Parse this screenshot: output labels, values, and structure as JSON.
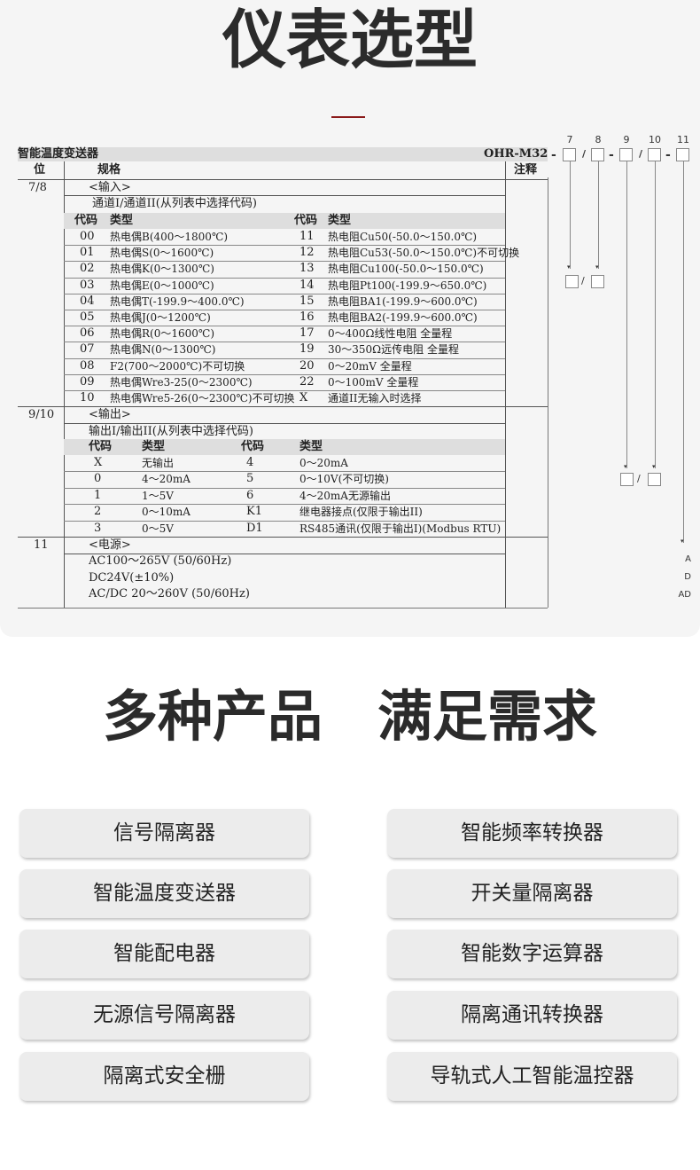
{
  "title": "仪表选型",
  "subtitle": "多种产品　满足需求",
  "table": {
    "product_name": "智能温度变送器",
    "model": "OHR-M32",
    "col_pos": "位",
    "col_spec": "规格",
    "col_note": "注释",
    "input": {
      "pos": "7/8",
      "label": "<输入>",
      "desc": "通道I/通道II(从列表中选择代码)",
      "h_code": "代码",
      "h_type": "类型",
      "rows": [
        [
          "00",
          "热电偶B(400～1800℃)",
          "11",
          "热电阻Cu50(-50.0～150.0℃)"
        ],
        [
          "01",
          "热电偶S(0～1600℃)",
          "12",
          "热电阻Cu53(-50.0～150.0℃)不可切换"
        ],
        [
          "02",
          "热电偶K(0～1300℃)",
          "13",
          "热电阻Cu100(-50.0～150.0℃)"
        ],
        [
          "03",
          "热电偶E(0～1000℃)",
          "14",
          "热电阻Pt100(-199.9～650.0℃)"
        ],
        [
          "04",
          "热电偶T(-199.9～400.0℃)",
          "15",
          "热电阻BA1(-199.9～600.0℃)"
        ],
        [
          "05",
          "热电偶J(0～1200℃)",
          "16",
          "热电阻BA2(-199.9～600.0℃)"
        ],
        [
          "06",
          "热电偶R(0～1600℃)",
          "17",
          "0～400Ω线性电阻 全量程"
        ],
        [
          "07",
          "热电偶N(0～1300℃)",
          "19",
          "30～350Ω远传电阻 全量程"
        ],
        [
          "08",
          "F2(700～2000℃)不可切换",
          "20",
          "0～20mV 全量程"
        ],
        [
          "09",
          "热电偶Wre3-25(0～2300℃)",
          "22",
          "0～100mV 全量程"
        ],
        [
          "10",
          "热电偶Wre5-26(0～2300℃)不可切换",
          "X",
          "通道II无输入时选择"
        ]
      ]
    },
    "output": {
      "pos": "9/10",
      "label": "<输出>",
      "desc": "输出I/输出II(从列表中选择代码)",
      "h_code": "代码",
      "h_type": "类型",
      "rows": [
        [
          "X",
          "无输出",
          "4",
          "0～20mA"
        ],
        [
          "0",
          "4～20mA",
          "5",
          "0～10V(不可切换)"
        ],
        [
          "1",
          "1～5V",
          "6",
          "4～20mA无源输出"
        ],
        [
          "2",
          "0～10mA",
          "K1",
          "继电器接点(仅限于输出II)"
        ],
        [
          "3",
          "0～5V",
          "D1",
          "RS485通讯(仅限于输出I)(Modbus RTU)"
        ]
      ]
    },
    "power": {
      "pos": "11",
      "label": "<电源>",
      "rows": [
        "AC100～265V (50/60Hz)",
        "DC24V(±10%)",
        "AC/DC 20～260V (50/60Hz)"
      ]
    }
  },
  "code_diagram": {
    "digits": [
      "7",
      "8",
      "9",
      "10",
      "11"
    ],
    "power_codes": [
      "A",
      "D",
      "AD"
    ]
  },
  "products": [
    "信号隔离器",
    "智能频率转换器",
    "智能温度变送器",
    "开关量隔离器",
    "智能配电器",
    "智能数字运算器",
    "无源信号隔离器",
    "隔离通讯转换器",
    "隔离式安全栅",
    "导轨式人工智能温控器"
  ],
  "colors": {
    "accent": "#8b1a1a",
    "panel": "#f5f5f5",
    "button": "#ececec"
  }
}
